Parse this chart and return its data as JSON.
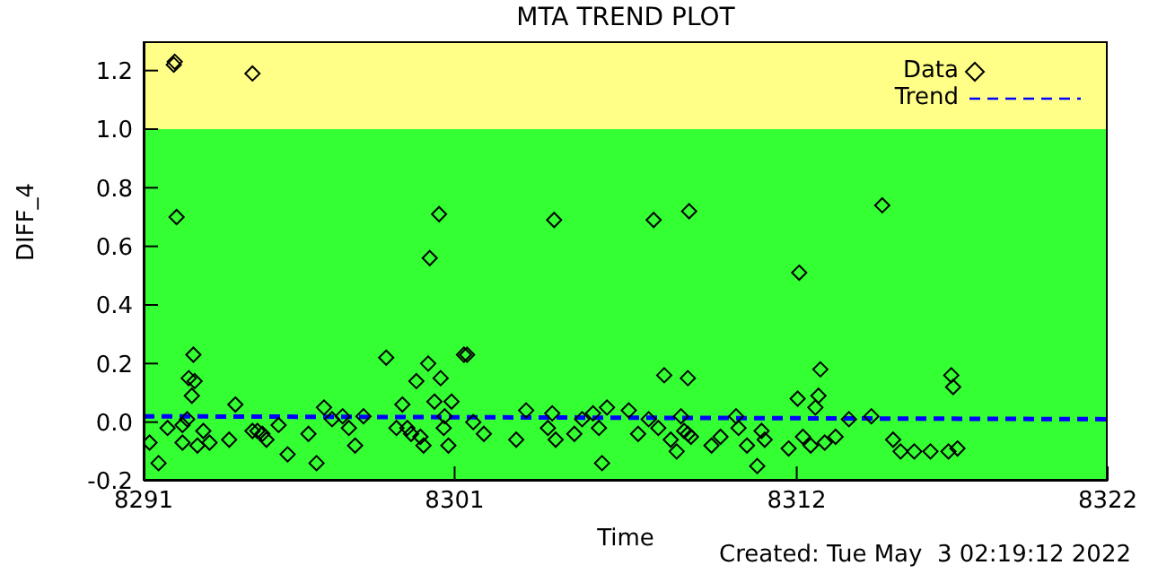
{
  "chart_data": {
    "type": "scatter",
    "title": "MTA TREND PLOT",
    "xlabel": "Time",
    "ylabel": "DIFF_4",
    "annotations": [
      "Created: Tue May  3 02:19:12 2022"
    ],
    "xlim": [
      8291,
      8322
    ],
    "xticks": [
      8291,
      8301,
      8312,
      8322
    ],
    "ylim": [
      -0.2,
      1.3
    ],
    "yticks": [
      -0.2,
      {
        "value": 0,
        "label": "0.0"
      },
      0.2,
      0.4,
      0.6,
      0.8,
      {
        "value": 1,
        "label": "1.0"
      },
      1.2
    ],
    "legend": "top right",
    "bands": [
      {
        "axis": "y",
        "from": -0.2,
        "to": 1.0,
        "color": "#33ff33"
      },
      {
        "axis": "y",
        "from": 1.0,
        "to": 1.3,
        "color": "#ffff88"
      }
    ],
    "series": [
      {
        "name": "Data",
        "color": "#000000",
        "marker": "diamond",
        "x": [
          8291.97,
          8292.0,
          8294.5,
          8292.06,
          8291.19,
          8291.48,
          8291.77,
          8292.25,
          8292.25,
          8292.6,
          8292.45,
          8292.64,
          8292.55,
          8292.4,
          8292.73,
          8292.92,
          8293.12,
          8293.75,
          8293.95,
          8294.5,
          8294.66,
          8294.82,
          8294.95,
          8295.34,
          8295.63,
          8296.3,
          8296.56,
          8296.8,
          8297.06,
          8297.4,
          8297.6,
          8297.8,
          8298.07,
          8298.8,
          8299.13,
          8299.32,
          8299.48,
          8299.6,
          8299.77,
          8300.15,
          8300.2,
          8300.0,
          8299.9,
          8300.35,
          8300.5,
          8300.55,
          8300.68,
          8300.65,
          8300.8,
          8300.9,
          8301.3,
          8301.4,
          8301.6,
          8301.94,
          8302.98,
          8303.3,
          8304.0,
          8304.2,
          8304.25,
          8304.14,
          8304.85,
          8305.1,
          8305.45,
          8305.74,
          8305.64,
          8305.9,
          8306.6,
          8306.9,
          8307.4,
          8307.24,
          8307.55,
          8307.74,
          8307.95,
          8308.14,
          8308.28,
          8308.38,
          8308.5,
          8308.6,
          8308.5,
          8308.54,
          8309.26,
          8309.55,
          8310.05,
          8310.13,
          8310.4,
          8310.73,
          8310.87,
          8310.97,
          8311.74,
          8312.03,
          8312.08,
          8312.2,
          8312.45,
          8312.7,
          8312.6,
          8312.76,
          8312.9,
          8313.25,
          8313.68,
          8314.4,
          8314.75,
          8315.1,
          8315.34,
          8315.78,
          8316.3,
          8316.88,
          8317.17,
          8316.97,
          8317.03
        ],
        "values": [
          1.22,
          1.23,
          1.19,
          0.7,
          -0.07,
          -0.14,
          -0.02,
          -0.01,
          -0.07,
          0.23,
          0.15,
          0.14,
          0.09,
          0.01,
          -0.08,
          -0.03,
          -0.07,
          -0.06,
          0.06,
          -0.03,
          -0.03,
          -0.04,
          -0.06,
          -0.01,
          -0.11,
          -0.04,
          -0.14,
          0.05,
          0.01,
          0.02,
          -0.02,
          -0.08,
          0.02,
          0.22,
          -0.02,
          0.06,
          -0.02,
          -0.04,
          0.14,
          0.2,
          0.56,
          -0.08,
          -0.05,
          0.07,
          0.71,
          0.15,
          0.02,
          -0.02,
          -0.08,
          0.07,
          0.23,
          0.23,
          0.0,
          -0.04,
          -0.06,
          0.04,
          -0.02,
          0.69,
          -0.06,
          0.03,
          -0.04,
          0.01,
          0.03,
          -0.14,
          -0.02,
          0.05,
          0.04,
          -0.04,
          0.69,
          0.01,
          -0.02,
          0.16,
          -0.06,
          -0.1,
          0.02,
          -0.03,
          -0.04,
          -0.05,
          0.15,
          0.72,
          -0.08,
          -0.05,
          0.02,
          -0.02,
          -0.08,
          -0.15,
          -0.03,
          -0.06,
          -0.09,
          0.08,
          0.51,
          -0.05,
          -0.08,
          0.09,
          0.05,
          0.18,
          -0.07,
          -0.05,
          0.01,
          0.02,
          0.74,
          -0.06,
          -0.1,
          -0.1,
          -0.1,
          -0.1,
          -0.09,
          0.16,
          0.12
        ]
      },
      {
        "name": "Trend",
        "type": "line",
        "color": "#0000ff",
        "line_style": "dashed",
        "x": [
          8291,
          8322
        ],
        "values": [
          0.02,
          0.01
        ]
      }
    ]
  }
}
